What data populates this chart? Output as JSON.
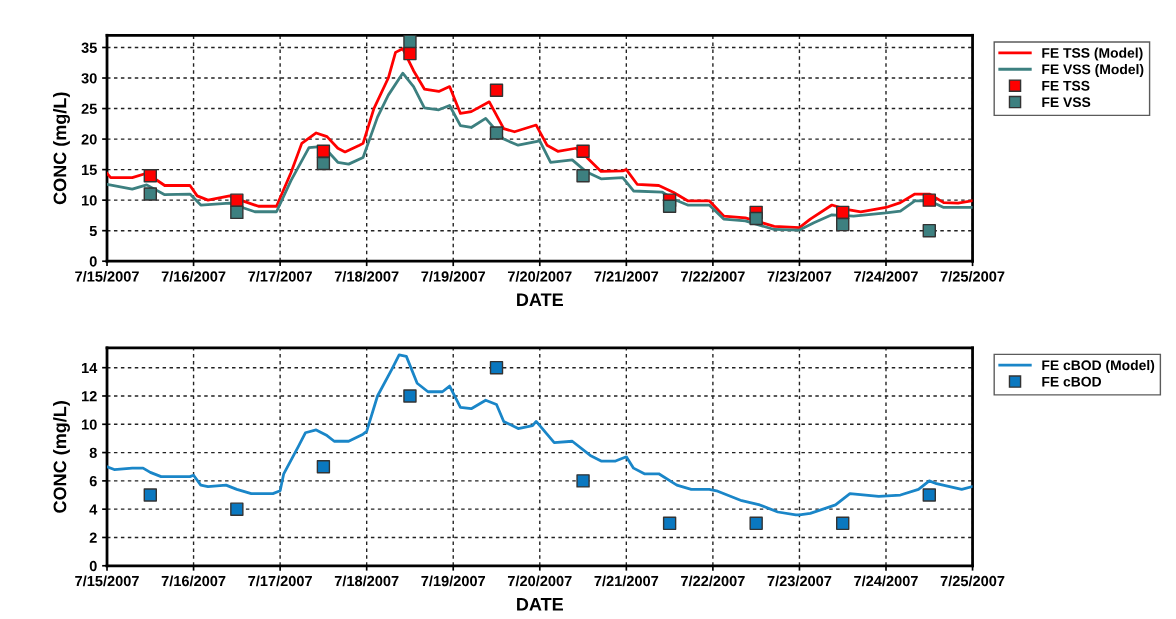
{
  "chart_data": [
    {
      "type": "line",
      "xlabel": "DATE",
      "ylabel": "CONC (mg/L)",
      "xlim": [
        "2007-07-15",
        "2007-07-25"
      ],
      "ylim": [
        0,
        37
      ],
      "yticks": [
        0,
        5,
        10,
        15,
        20,
        25,
        30,
        35
      ],
      "xticks": [
        {
          "value": "2007-07-15",
          "label": "7/15/2007"
        },
        {
          "value": "2007-07-16",
          "label": "7/16/2007"
        },
        {
          "value": "2007-07-17",
          "label": "7/17/2007"
        },
        {
          "value": "2007-07-18",
          "label": "7/18/2007"
        },
        {
          "value": "2007-07-19",
          "label": "7/19/2007"
        },
        {
          "value": "2007-07-20",
          "label": "7/20/2007"
        },
        {
          "value": "2007-07-21",
          "label": "7/21/2007"
        },
        {
          "value": "2007-07-22",
          "label": "7/22/2007"
        },
        {
          "value": "2007-07-23",
          "label": "7/23/2007"
        },
        {
          "value": "2007-07-24",
          "label": "7/24/2007"
        },
        {
          "value": "2007-07-25",
          "label": "7/25/2007"
        }
      ],
      "grid": true,
      "legend": "right",
      "series": [
        {
          "name": "FE TSS (Model)",
          "color": "#ff0000",
          "line_style": "solid",
          "x": [
            "2007-07-15T00:00",
            "2007-07-15T01:00",
            "2007-07-15T07:00",
            "2007-07-15T11:00",
            "2007-07-15T12:00",
            "2007-07-15T16:00",
            "2007-07-15T23:00",
            "2007-07-16T01:00",
            "2007-07-16T04:00",
            "2007-07-16T10:00",
            "2007-07-16T13:00",
            "2007-07-16T18:00",
            "2007-07-16T23:00",
            "2007-07-17T03:00",
            "2007-07-17T06:00",
            "2007-07-17T10:00",
            "2007-07-17T13:00",
            "2007-07-17T16:00",
            "2007-07-17T18:00",
            "2007-07-17T22:00",
            "2007-07-17T23:00",
            "2007-07-18T02:00",
            "2007-07-18T06:00",
            "2007-07-18T08:00",
            "2007-07-18T10:00",
            "2007-07-18T13:00",
            "2007-07-18T16:00",
            "2007-07-18T20:00",
            "2007-07-18T23:00",
            "2007-07-19T02:00",
            "2007-07-19T05:00",
            "2007-07-19T10:00",
            "2007-07-19T14:00",
            "2007-07-19T17:00",
            "2007-07-19T23:00",
            "2007-07-20T02:00",
            "2007-07-20T05:00",
            "2007-07-20T10:00",
            "2007-07-20T12:00",
            "2007-07-20T17:00",
            "2007-07-20T23:00",
            "2007-07-21T00:00",
            "2007-07-21T03:00",
            "2007-07-21T09:00",
            "2007-07-21T13:00",
            "2007-07-21T17:00",
            "2007-07-21T23:00",
            "2007-07-22T03:00",
            "2007-07-22T09:00",
            "2007-07-22T17:00",
            "2007-07-23T00:00",
            "2007-07-23T03:00",
            "2007-07-23T09:00",
            "2007-07-23T13:00",
            "2007-07-23T17:00",
            "2007-07-24T00:00",
            "2007-07-24T04:00",
            "2007-07-24T08:00",
            "2007-07-24T12:00",
            "2007-07-24T16:00",
            "2007-07-24T20:00",
            "2007-07-25T00:00"
          ],
          "values": [
            14.4,
            13.7,
            13.7,
            14.4,
            14.0,
            12.4,
            12.4,
            10.7,
            10.0,
            10.7,
            10.0,
            9.0,
            9.0,
            14.5,
            19.3,
            21.0,
            20.4,
            18.5,
            17.9,
            19.0,
            19.3,
            25.0,
            30.0,
            34.2,
            34.8,
            31.2,
            28.2,
            27.8,
            28.6,
            24.2,
            24.5,
            26.1,
            21.7,
            21.2,
            22.3,
            19.0,
            18.0,
            18.5,
            17.6,
            14.7,
            14.8,
            15.0,
            12.6,
            12.4,
            11.3,
            9.9,
            9.9,
            7.4,
            7.1,
            5.7,
            5.5,
            6.9,
            9.2,
            8.5,
            8.1,
            8.8,
            9.6,
            11.0,
            11.0,
            9.6,
            9.5,
            9.9
          ]
        },
        {
          "name": "FE VSS (Model)",
          "color": "#3d8080",
          "line_style": "solid",
          "x": [
            "2007-07-15T00:00",
            "2007-07-15T07:00",
            "2007-07-15T11:00",
            "2007-07-15T16:00",
            "2007-07-15T23:00",
            "2007-07-16T02:00",
            "2007-07-16T10:00",
            "2007-07-16T17:00",
            "2007-07-16T23:00",
            "2007-07-17T03:00",
            "2007-07-17T08:00",
            "2007-07-17T12:00",
            "2007-07-17T16:00",
            "2007-07-17T19:00",
            "2007-07-17T23:00",
            "2007-07-18T03:00",
            "2007-07-18T06:00",
            "2007-07-18T10:00",
            "2007-07-18T13:00",
            "2007-07-18T16:00",
            "2007-07-18T20:00",
            "2007-07-18T23:00",
            "2007-07-19T02:00",
            "2007-07-19T05:00",
            "2007-07-19T09:00",
            "2007-07-19T14:00",
            "2007-07-19T18:00",
            "2007-07-20T00:00",
            "2007-07-20T03:00",
            "2007-07-20T09:00",
            "2007-07-20T13:00",
            "2007-07-20T17:00",
            "2007-07-20T23:00",
            "2007-07-21T02:00",
            "2007-07-21T10:00",
            "2007-07-21T13:00",
            "2007-07-21T17:00",
            "2007-07-21T23:00",
            "2007-07-22T03:00",
            "2007-07-22T09:00",
            "2007-07-22T17:00",
            "2007-07-23T00:00",
            "2007-07-23T04:00",
            "2007-07-23T09:00",
            "2007-07-23T15:00",
            "2007-07-24T00:00",
            "2007-07-24T04:00",
            "2007-07-24T08:00",
            "2007-07-24T12:00",
            "2007-07-24T16:00",
            "2007-07-25T00:00"
          ],
          "values": [
            12.6,
            11.8,
            12.5,
            10.9,
            11.0,
            9.2,
            9.5,
            8.1,
            8.1,
            13.2,
            18.6,
            18.8,
            16.2,
            15.9,
            17.0,
            23.6,
            27.2,
            30.8,
            28.6,
            25.1,
            24.8,
            25.5,
            22.2,
            21.9,
            23.4,
            20.0,
            19.0,
            19.7,
            16.2,
            16.6,
            14.6,
            13.5,
            13.7,
            11.5,
            11.3,
            10.2,
            9.2,
            9.2,
            6.9,
            6.6,
            5.2,
            5.1,
            6.3,
            7.6,
            7.4,
            7.9,
            8.2,
            9.9,
            9.9,
            8.8,
            8.8
          ]
        },
        {
          "name": "FE TSS",
          "type": "scatter",
          "marker": "square",
          "color": "#ff0000",
          "x": [
            "2007-07-15T12:00",
            "2007-07-16T12:00",
            "2007-07-17T12:00",
            "2007-07-18T12:00",
            "2007-07-19T12:00",
            "2007-07-20T12:00",
            "2007-07-21T12:00",
            "2007-07-22T12:00",
            "2007-07-23T12:00",
            "2007-07-24T12:00"
          ],
          "values": [
            14,
            10,
            18,
            34,
            28,
            18,
            10,
            8,
            8,
            10
          ]
        },
        {
          "name": "FE VSS",
          "type": "scatter",
          "marker": "square",
          "color": "#3d8080",
          "x": [
            "2007-07-15T12:00",
            "2007-07-16T12:00",
            "2007-07-17T12:00",
            "2007-07-18T12:00",
            "2007-07-19T12:00",
            "2007-07-20T12:00",
            "2007-07-21T12:00",
            "2007-07-22T12:00",
            "2007-07-23T12:00",
            "2007-07-24T12:00"
          ],
          "values": [
            11,
            8,
            16,
            36,
            21,
            14,
            9,
            7,
            6,
            5
          ]
        }
      ]
    },
    {
      "type": "line",
      "xlabel": "DATE",
      "ylabel": "CONC (mg/L)",
      "xlim": [
        "2007-07-15",
        "2007-07-25"
      ],
      "ylim": [
        0,
        15.4
      ],
      "yticks": [
        0,
        2,
        4,
        6,
        8,
        10,
        12,
        14
      ],
      "xticks": [
        {
          "value": "2007-07-15",
          "label": "7/15/2007"
        },
        {
          "value": "2007-07-16",
          "label": "7/16/2007"
        },
        {
          "value": "2007-07-17",
          "label": "7/17/2007"
        },
        {
          "value": "2007-07-18",
          "label": "7/18/2007"
        },
        {
          "value": "2007-07-19",
          "label": "7/19/2007"
        },
        {
          "value": "2007-07-20",
          "label": "7/20/2007"
        },
        {
          "value": "2007-07-21",
          "label": "7/21/2007"
        },
        {
          "value": "2007-07-22",
          "label": "7/22/2007"
        },
        {
          "value": "2007-07-23",
          "label": "7/23/2007"
        },
        {
          "value": "2007-07-24",
          "label": "7/24/2007"
        },
        {
          "value": "2007-07-25",
          "label": "7/25/2007"
        }
      ],
      "grid": true,
      "legend": "right",
      "series": [
        {
          "name": "FE cBOD (Model)",
          "color": "#1a86c8",
          "line_style": "solid",
          "x": [
            "2007-07-15T00:00",
            "2007-07-15T02:00",
            "2007-07-15T07:00",
            "2007-07-15T10:00",
            "2007-07-15T12:00",
            "2007-07-15T15:00",
            "2007-07-15T23:00",
            "2007-07-16T00:00",
            "2007-07-16T02:00",
            "2007-07-16T04:00",
            "2007-07-16T09:00",
            "2007-07-16T12:00",
            "2007-07-16T16:00",
            "2007-07-16T22:00",
            "2007-07-17T00:00",
            "2007-07-17T01:00",
            "2007-07-17T05:00",
            "2007-07-17T07:00",
            "2007-07-17T10:00",
            "2007-07-17T13:00",
            "2007-07-17T15:00",
            "2007-07-17T19:00",
            "2007-07-17T23:00",
            "2007-07-18T00:00",
            "2007-07-18T03:00",
            "2007-07-18T07:00",
            "2007-07-18T09:00",
            "2007-07-18T11:00",
            "2007-07-18T14:00",
            "2007-07-18T17:00",
            "2007-07-18T21:00",
            "2007-07-18T23:00",
            "2007-07-19T02:00",
            "2007-07-19T05:00",
            "2007-07-19T09:00",
            "2007-07-19T12:00",
            "2007-07-19T14:00",
            "2007-07-19T18:00",
            "2007-07-19T22:00",
            "2007-07-19T23:00",
            "2007-07-20T04:00",
            "2007-07-20T09:00",
            "2007-07-20T14:00",
            "2007-07-20T17:00",
            "2007-07-20T21:00",
            "2007-07-21T00:00",
            "2007-07-21T02:00",
            "2007-07-21T05:00",
            "2007-07-21T09:00",
            "2007-07-21T14:00",
            "2007-07-21T18:00",
            "2007-07-21T23:00",
            "2007-07-22T01:00",
            "2007-07-22T08:00",
            "2007-07-22T13:00",
            "2007-07-22T18:00",
            "2007-07-22T23:00",
            "2007-07-23T00:00",
            "2007-07-23T03:00",
            "2007-07-23T10:00",
            "2007-07-23T14:00",
            "2007-07-23T22:00",
            "2007-07-24T04:00",
            "2007-07-24T09:00",
            "2007-07-24T12:00",
            "2007-07-24T14:00",
            "2007-07-24T21:00",
            "2007-07-25T00:00"
          ],
          "values": [
            7.0,
            6.8,
            6.9,
            6.9,
            6.6,
            6.3,
            6.3,
            6.4,
            5.7,
            5.6,
            5.7,
            5.4,
            5.1,
            5.1,
            5.3,
            6.5,
            8.4,
            9.4,
            9.6,
            9.2,
            8.8,
            8.8,
            9.3,
            9.5,
            12.0,
            13.9,
            14.9,
            14.8,
            12.9,
            12.3,
            12.3,
            12.7,
            11.2,
            11.1,
            11.7,
            11.4,
            10.2,
            9.7,
            9.9,
            10.2,
            8.7,
            8.8,
            7.8,
            7.4,
            7.4,
            7.7,
            6.9,
            6.5,
            6.5,
            5.7,
            5.4,
            5.4,
            5.3,
            4.6,
            4.3,
            3.8,
            3.6,
            3.6,
            3.7,
            4.3,
            5.1,
            4.9,
            5.0,
            5.4,
            6.0,
            5.8,
            5.4,
            5.6
          ]
        },
        {
          "name": "FE cBOD",
          "type": "scatter",
          "marker": "square",
          "color": "#0a78c0",
          "x": [
            "2007-07-15T12:00",
            "2007-07-16T12:00",
            "2007-07-17T12:00",
            "2007-07-18T12:00",
            "2007-07-19T12:00",
            "2007-07-20T12:00",
            "2007-07-21T12:00",
            "2007-07-22T12:00",
            "2007-07-23T12:00",
            "2007-07-24T12:00"
          ],
          "values": [
            5,
            4,
            7,
            12,
            14,
            6,
            3,
            3,
            3,
            5
          ]
        }
      ]
    }
  ]
}
